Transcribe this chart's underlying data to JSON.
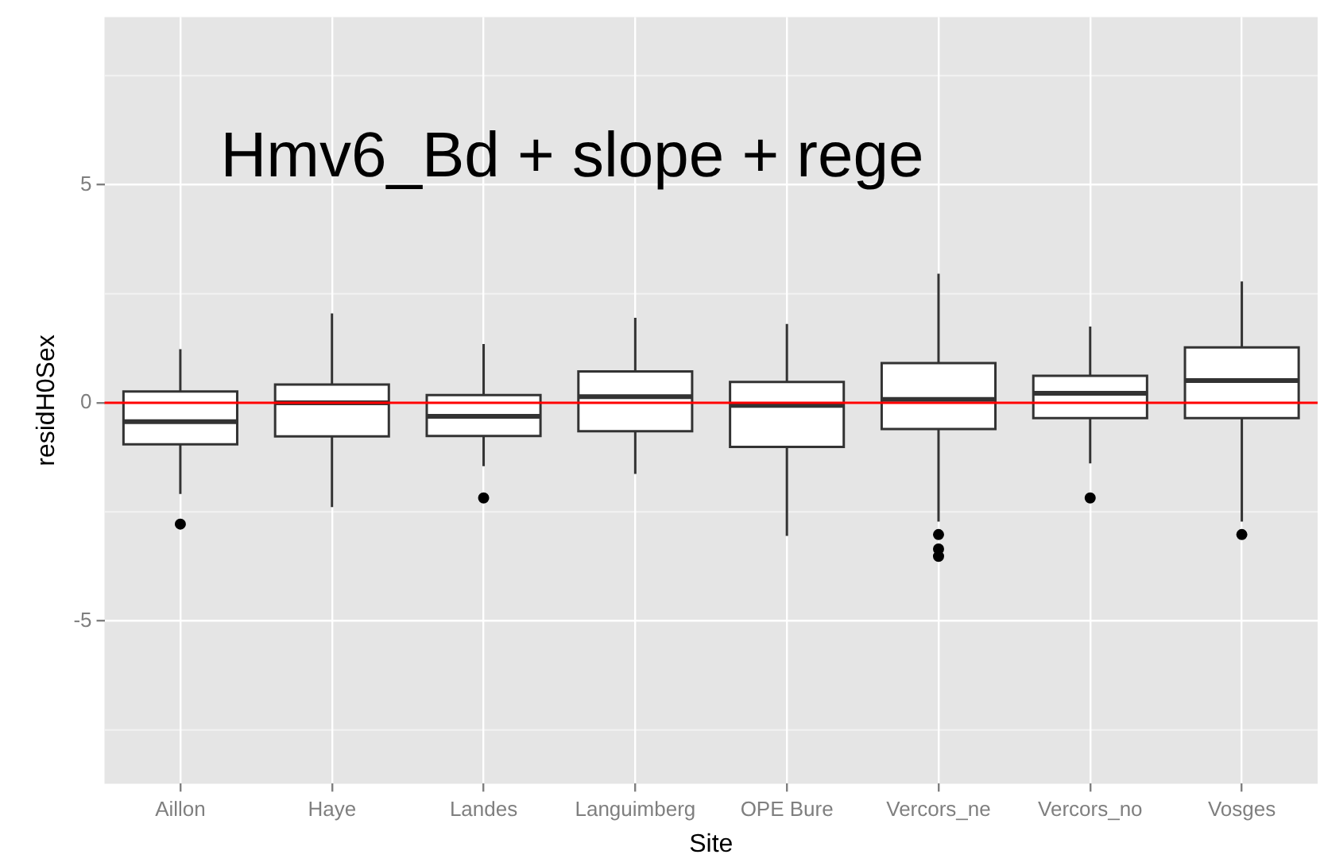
{
  "chart_data": {
    "type": "box",
    "title": "Hmv6_Bd + slope + rege",
    "xlabel": "Site",
    "ylabel": "residH0Sex",
    "categories": [
      "Aillon",
      "Haye",
      "Landes",
      "Languimberg",
      "OPE Bure",
      "Vercors_ne",
      "Vercors_no",
      "Vosges"
    ],
    "boxes": [
      {
        "low": -2.09,
        "q1": -0.95,
        "median": -0.43,
        "q3": 0.26,
        "high": 1.23,
        "outliers": [
          -2.78
        ]
      },
      {
        "low": -2.39,
        "q1": -0.77,
        "median": 0,
        "q3": 0.42,
        "high": 2.05
      },
      {
        "low": -1.45,
        "q1": -0.76,
        "median": -0.31,
        "q3": 0.18,
        "high": 1.35,
        "outliers": [
          -2.18
        ]
      },
      {
        "low": -1.63,
        "q1": -0.65,
        "median": 0.14,
        "q3": 0.72,
        "high": 1.95
      },
      {
        "low": -3.05,
        "q1": -1.01,
        "median": -0.06,
        "q3": 0.48,
        "high": 1.81
      },
      {
        "low": -2.72,
        "q1": -0.6,
        "median": 0.08,
        "q3": 0.91,
        "high": 2.96,
        "outliers": [
          -3.02,
          -3.35,
          -3.52
        ]
      },
      {
        "low": -1.39,
        "q1": -0.35,
        "median": 0.22,
        "q3": 0.62,
        "high": 1.75,
        "outliers": [
          -2.18
        ]
      },
      {
        "low": -2.72,
        "q1": -0.35,
        "median": 0.51,
        "q3": 1.27,
        "high": 2.78,
        "outliers": [
          -3.02
        ]
      }
    ],
    "color": "#ffffff",
    "ylim": [
      -8.73,
      8.84
    ],
    "yticks": [
      -5,
      0,
      5
    ],
    "grid": true,
    "legend": false,
    "ref_lines": [
      {
        "axis": "y",
        "value": 0,
        "color": "#ff0000"
      }
    ]
  }
}
